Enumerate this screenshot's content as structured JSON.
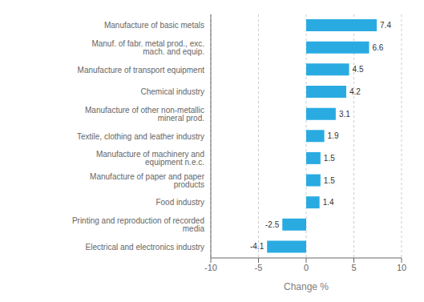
{
  "chart_data": {
    "type": "bar",
    "orientation": "horizontal",
    "categories": [
      "Electrical and electronics industry",
      "Printing and reproduction of recorded media",
      "Food industry",
      "Manufacture of paper and paper products",
      "Manufacture of machinery and equipment n.e.c.",
      "Textile, clothing and leather industry",
      "Manufacture of other non-metallic mineral prod.",
      "Chemical industry",
      "Manufacture of transport equipment",
      "Manuf. of fabr. metal prod., exc. mach. and equip.",
      "Manufacture of basic metals"
    ],
    "values": [
      -4.1,
      -2.5,
      1.4,
      1.5,
      1.5,
      1.9,
      3.1,
      4.2,
      4.5,
      6.6,
      7.4
    ],
    "color": "#29abe2",
    "xlabel": "Change %",
    "xlim": [
      -10,
      10
    ],
    "xticks": [
      -10,
      -5,
      0,
      5,
      10
    ],
    "grid": true,
    "data_labels": true
  }
}
